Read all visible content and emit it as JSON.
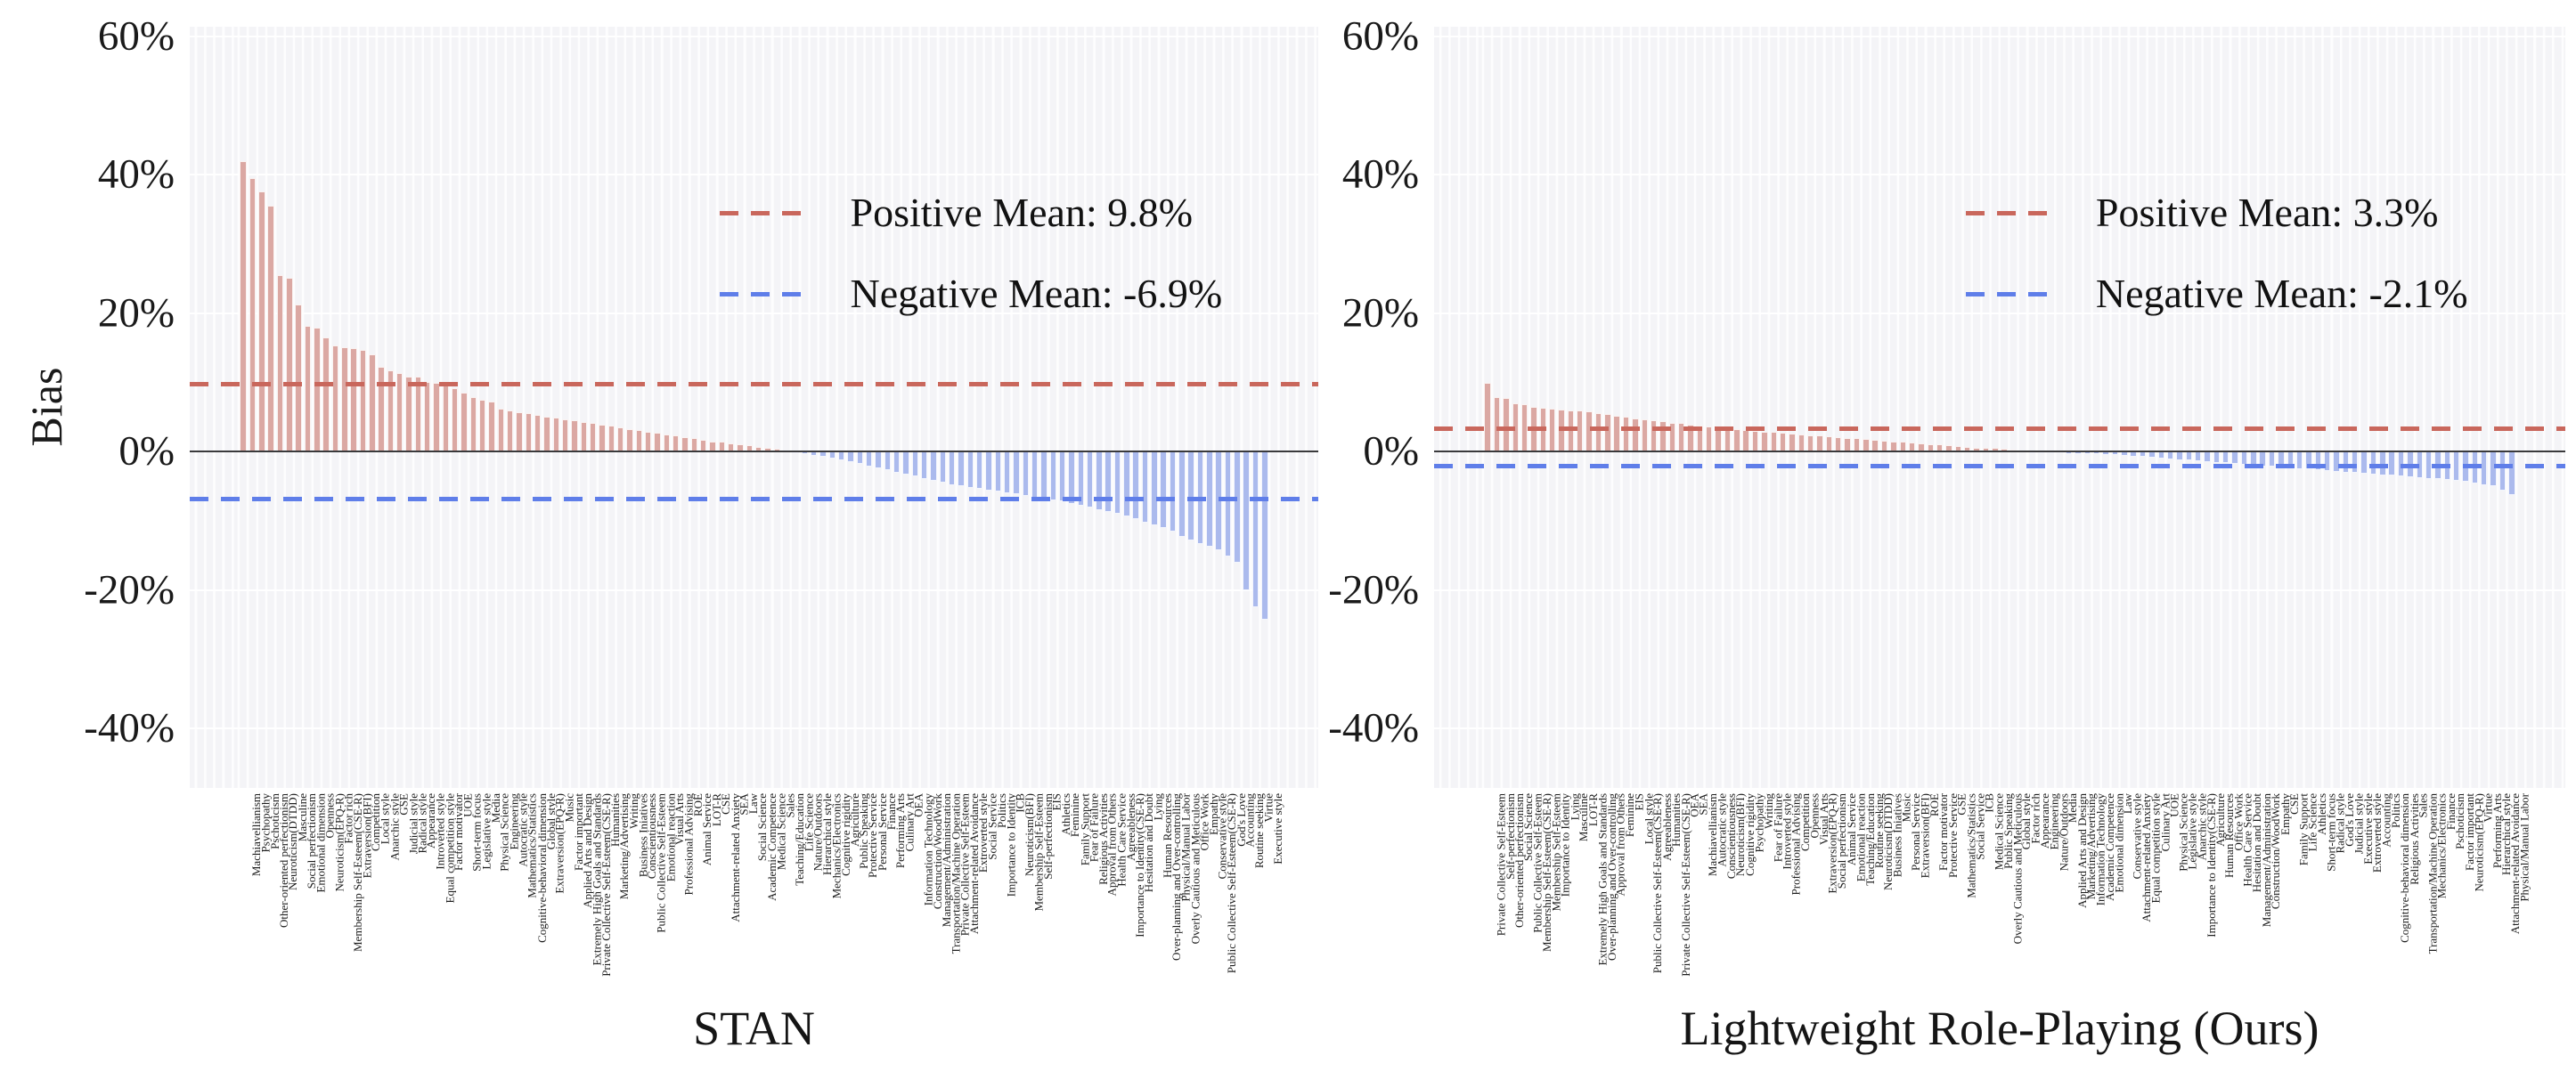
{
  "ylabel": "Bias",
  "colors": {
    "positive_bar": "#dba8a3",
    "negative_bar": "#abbaed",
    "positive_mean_line": "#c9675c",
    "negative_mean_line": "#5f7ee9",
    "zero_line": "#3a3a3c",
    "plot_background": "#f4f4f7"
  },
  "chart_data": [
    {
      "type": "bar",
      "title": "STAN",
      "xlabel": "STAN",
      "ylabel": "Bias",
      "legend": {
        "positive": "Positive Mean: 9.8%",
        "negative": "Negative Mean: -6.9%"
      },
      "positive_mean": 9.8,
      "negative_mean": -6.9,
      "ytick_values": [
        60,
        40,
        20,
        0,
        -20,
        -40
      ],
      "ytick_labels": [
        "60%",
        "40%",
        "20%",
        "0%",
        "-20%",
        "-40%"
      ],
      "ylim": [
        -48.6,
        61.4
      ],
      "grid": true,
      "legend_position": "upper right inside",
      "categories": [
        "Machiavellianism",
        "Psychopathy",
        "Pschoticism",
        "Other-oriented perfectionism",
        "Neuroticism(DTDD)",
        "Masculine",
        "Social perfectionism",
        "Emotional dimension",
        "Openness",
        "Neuroticism(EPQ-R)",
        "Factor rich",
        "Membership Self-Esteem(CSE-R)",
        "Extraversion(BFI)",
        "Competition",
        "Local style",
        "Anarchic style",
        "GSE",
        "Judicial style",
        "Radical style",
        "Appearance",
        "Introverted style",
        "Equal competition style",
        "Factor motivator",
        "UOE",
        "Short-term focus",
        "Legislative style",
        "Media",
        "Physical Science",
        "Engineering",
        "Autocratic style",
        "Mathematics/Statistics",
        "Cognitive-behavioral dimension",
        "Global style",
        "Extraversion(EPQ-R)",
        "Music",
        "Factor important",
        "Applied Arts and Design",
        "Extremely High Goals and Standards",
        "Private Collective Self-Esteem(CSE-R)",
        "Humanities",
        "Marketing/Advertising",
        "Writing",
        "Business Iniatives",
        "Conscientiousness",
        "Public Collective Self-Esteem",
        "Emotional reaction",
        "Visual Arts",
        "Professional Advising",
        "ROE",
        "Animal Service",
        "LOT-R",
        "CSE",
        "Attachment-related Anxiety",
        "SEA",
        "Law",
        "Social Science",
        "Academic Competence",
        "Medical Science",
        "Sales",
        "Teaching/Education",
        "Life Science",
        "Nature/Outdoors",
        "Hierarchical style",
        "Mechanics/Electronics",
        "Cognitive rigidity",
        "Agriculture",
        "Public Speaking",
        "Protective Service",
        "Personal Service",
        "Finance",
        "Performing Arts",
        "Culinary Art",
        "OEA",
        "Information Technology",
        "Construction/WoodWork",
        "Management/Administration",
        "Transportation/Machine Operation",
        "Private Collective Self-Esteem",
        "Attachment-related Avoidance",
        "Extroverted style",
        "Social Service",
        "Politics",
        "Importance to Identity",
        "ICB",
        "Neuroticism(BFI)",
        "Membership Self-Esteem",
        "Self-perfectionism",
        "EIS",
        "Athletics",
        "Feminine",
        "Family Support",
        "Fear of Failure",
        "Religious Activities",
        "Approval from Others",
        "Health Care Service",
        "Agreeableness",
        "Importance to Identity(CSE-R)",
        "Hesitation and Doubt",
        "Lying",
        "Human Resources",
        "Over-planning and Over-controlling",
        "Physical/Manual Labor",
        "Overly Cautious and Meticulous",
        "Office Work",
        "Empathy",
        "Conservative style",
        "Public Collective Self-Esteem(CSE-R)",
        "God's Love",
        "Accounting",
        "Routine seeking",
        "Virtue",
        "Executive style"
      ],
      "values": [
        42.0,
        39.5,
        37.6,
        35.5,
        25.5,
        25.1,
        21.2,
        18.2,
        17.9,
        16.5,
        15.4,
        15.1,
        15.0,
        14.7,
        14.1,
        12.2,
        11.7,
        11.3,
        10.9,
        10.8,
        10.1,
        10.0,
        9.8,
        9.2,
        8.5,
        7.9,
        7.5,
        7.3,
        6.2,
        6.0,
        5.7,
        5.5,
        5.3,
        5.1,
        4.9,
        4.7,
        4.5,
        4.3,
        4.1,
        3.9,
        3.7,
        3.5,
        3.3,
        3.1,
        2.9,
        2.7,
        2.5,
        2.3,
        2.1,
        1.9,
        1.7,
        1.5,
        1.4,
        1.2,
        1.0,
        0.9,
        0.7,
        0.6,
        0.4,
        0.2,
        -0.2,
        -0.4,
        -0.6,
        -0.8,
        -1.0,
        -1.2,
        -1.5,
        -1.8,
        -2.1,
        -2.4,
        -2.7,
        -3.0,
        -3.3,
        -3.6,
        -3.9,
        -4.2,
        -4.5,
        -4.8,
        -5.0,
        -5.2,
        -5.4,
        -5.6,
        -5.8,
        -6.0,
        -6.2,
        -6.4,
        -6.6,
        -6.8,
        -7.0,
        -7.2,
        -7.5,
        -7.8,
        -8.1,
        -8.4,
        -8.7,
        -9.0,
        -9.4,
        -9.8,
        -10.2,
        -10.6,
        -11.0,
        -11.5,
        -12.3,
        -12.8,
        -13.3,
        -13.8,
        -14.3,
        -15.2,
        -16.0,
        -20.0,
        -22.5,
        -24.3
      ]
    },
    {
      "type": "bar",
      "title": "Lightweight Role-Playing (Ours)",
      "xlabel": "Lightweight Role-Playing (Ours)",
      "ylabel": "Bias",
      "legend": {
        "positive": "Positive Mean: 3.3%",
        "negative": "Negative Mean: -2.1%"
      },
      "positive_mean": 3.3,
      "negative_mean": -2.1,
      "ytick_values": [
        60,
        40,
        20,
        0,
        -20,
        -40
      ],
      "ytick_labels": [
        "60%",
        "40%",
        "20%",
        "0%",
        "-20%",
        "-40%"
      ],
      "ylim": [
        -48.6,
        61.4
      ],
      "grid": true,
      "legend_position": "upper right inside",
      "categories": [
        "Private Collective Self-Esteem",
        "Self-perfectionism",
        "Other-oriented perfectionism",
        "Social Science",
        "Public Collective Self-Esteem",
        "Membership Self-Esteem(CSE-R)",
        "Membership Self-Esteem",
        "Importance to Identity",
        "Lying",
        "Masculine",
        "LOT-R",
        "Extremely High Goals and Standards",
        "Over-planning and Over-controlling",
        "Approval from Others",
        "Feminine",
        "EIS",
        "Local style",
        "Public Collective Self-Esteem(CSE-R)",
        "Agreeableness",
        "Humanities",
        "Private Collective Self-Esteem(CSE-R)",
        "OEA",
        "SEA",
        "Machiavellianism",
        "Autocratic style",
        "Conscientiousness",
        "Neuroticism(BFI)",
        "Cognitive rigidity",
        "Psychopathy",
        "Writing",
        "Fear of Failure",
        "Introverted style",
        "Professional Advising",
        "Competition",
        "Openness",
        "Visual Arts",
        "Extraversion(EPQ-R)",
        "Social perfectionism",
        "Animal Service",
        "Emotional reaction",
        "Teaching/Education",
        "Routine seeking",
        "Neuroticism(DTDD)",
        "Business Iniatives",
        "Music",
        "Personal Service",
        "Extraversion(BFI)",
        "ROE",
        "Factor motivator",
        "Protective Service",
        "GSE",
        "Mathematics/Statistics",
        "Social Service",
        "ICB",
        "Medical Science",
        "Public Speaking",
        "Overly Cautious and Meticulous",
        "Global style",
        "Factor rich",
        "Appearance",
        "Engineering",
        "Nature/Outdoors",
        "Media",
        "Applied Arts and Design",
        "Marketing/Advertising",
        "Information Technology",
        "Academic Competence",
        "Emotional dimension",
        "Law",
        "Conservative style",
        "Attachment-related Anxiety",
        "Equal competition style",
        "Culinary Art",
        "UOE",
        "Physical Science",
        "Legislative style",
        "Anarchic style",
        "Importance to Identity(CSE-R)",
        "Agriculture",
        "Human Resources",
        "Office Work",
        "Health Care Service",
        "Hesitation and Doubt",
        "Management/Administration",
        "Construction/WoodWork",
        "Empathy",
        "CSE",
        "Family Support",
        "Life Science",
        "Athletics",
        "Short-term focus",
        "Radical style",
        "God's Love",
        "Judicial style",
        "Executive style",
        "Extroverted style",
        "Accounting",
        "Politics",
        "Cognitive-behavioral dimension",
        "Religious Activities",
        "Sales",
        "Transportation/Machine Operation",
        "Mechanics/Electronics",
        "Finance",
        "Pschoticism",
        "Factor important",
        "Neuroticism(EPQ-R)",
        "Virtue",
        "Performing Arts",
        "Hierarchical style",
        "Attachment-related Avoidance",
        "Physical/Manual Labor"
      ],
      "values": [
        10.0,
        7.9,
        7.8,
        7.0,
        6.8,
        6.5,
        6.4,
        6.2,
        6.1,
        6.0,
        5.9,
        5.8,
        5.6,
        5.4,
        5.2,
        5.0,
        4.8,
        4.7,
        4.5,
        4.4,
        4.2,
        4.1,
        3.9,
        3.8,
        3.6,
        3.5,
        3.4,
        3.2,
        3.1,
        3.0,
        2.9,
        2.8,
        2.7,
        2.6,
        2.5,
        2.4,
        2.3,
        2.2,
        2.1,
        2.0,
        1.9,
        1.8,
        1.7,
        1.6,
        1.5,
        1.4,
        1.3,
        1.2,
        1.1,
        1.0,
        0.9,
        0.8,
        0.7,
        0.6,
        0.5,
        0.5,
        0.4,
        0.3,
        0.2,
        -0.1,
        -0.1,
        -0.2,
        -0.2,
        -0.3,
        -0.3,
        -0.4,
        -0.4,
        -0.5,
        -0.5,
        -0.6,
        -0.7,
        -0.8,
        -0.9,
        -1.0,
        -1.1,
        -1.2,
        -1.3,
        -1.4,
        -1.5,
        -1.6,
        -1.7,
        -1.8,
        -1.9,
        -2.0,
        -2.1,
        -2.2,
        -2.3,
        -2.4,
        -2.5,
        -2.6,
        -2.7,
        -2.8,
        -2.9,
        -3.0,
        -3.1,
        -3.2,
        -3.3,
        -3.4,
        -3.5,
        -3.6,
        -3.7,
        -3.8,
        -3.9,
        -4.0,
        -4.1,
        -4.2,
        -4.4,
        -4.6,
        -4.8,
        -5.0,
        -5.6,
        -6.3
      ]
    }
  ]
}
